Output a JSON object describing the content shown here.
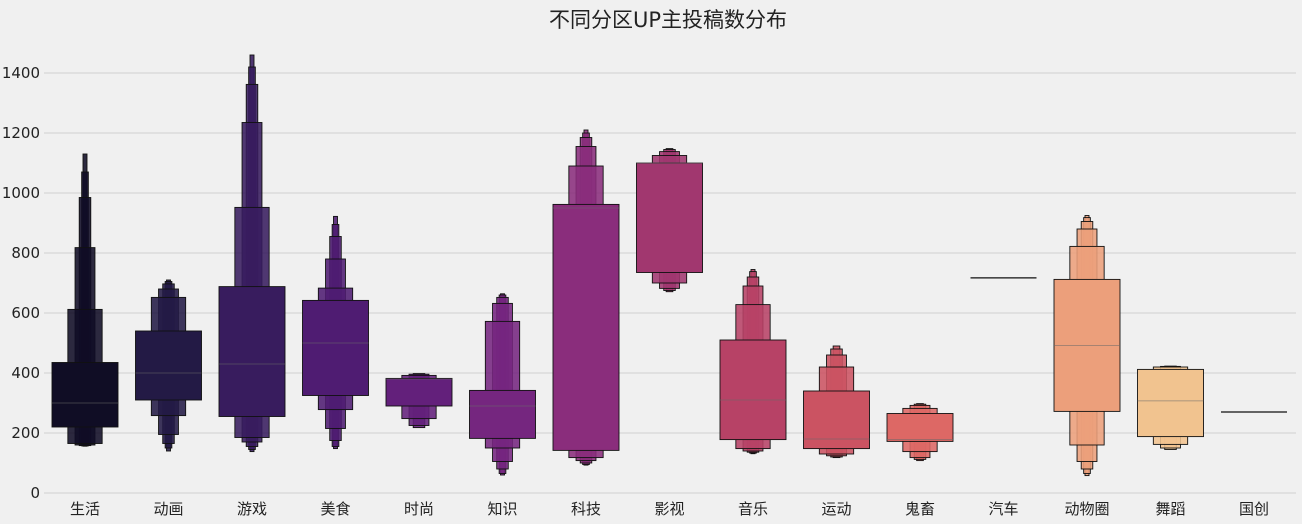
{
  "chart_data": {
    "type": "boxen",
    "title": "不同分区UP主投稿数分布",
    "xlabel": "",
    "ylabel": "",
    "ylim": [
      0,
      1530
    ],
    "yticks": [
      0,
      200,
      400,
      600,
      800,
      1000,
      1200,
      1400
    ],
    "grid": "horizontal",
    "legend": "none",
    "palette": "magma",
    "categories": [
      "生活",
      "动画",
      "游戏",
      "美食",
      "时尚",
      "知识",
      "科技",
      "影视",
      "音乐",
      "运动",
      "鬼畜",
      "汽车",
      "动物圈",
      "舞蹈",
      "国创"
    ],
    "series": [
      {
        "category": "生活",
        "color": "#100d25",
        "median": 300,
        "boxes": [
          [
            220,
            435
          ],
          [
            165,
            612
          ],
          [
            160,
            818
          ],
          [
            158,
            985
          ],
          [
            157,
            1070
          ],
          [
            156,
            1130
          ]
        ]
      },
      {
        "category": "动画",
        "color": "#231a45",
        "median": 400,
        "boxes": [
          [
            310,
            540
          ],
          [
            258,
            652
          ],
          [
            195,
            680
          ],
          [
            165,
            697
          ],
          [
            150,
            705
          ],
          [
            140,
            710
          ]
        ]
      },
      {
        "category": "游戏",
        "color": "#381c5e",
        "median": 430,
        "boxes": [
          [
            255,
            688
          ],
          [
            185,
            952
          ],
          [
            170,
            1235
          ],
          [
            155,
            1362
          ],
          [
            145,
            1420
          ],
          [
            138,
            1460
          ]
        ]
      },
      {
        "category": "美食",
        "color": "#4f1c72",
        "median": 500,
        "boxes": [
          [
            325,
            642
          ],
          [
            278,
            683
          ],
          [
            215,
            780
          ],
          [
            175,
            855
          ],
          [
            155,
            895
          ],
          [
            148,
            922
          ]
        ]
      },
      {
        "category": "时尚",
        "color": "#63207b",
        "median": 380,
        "boxes": [
          [
            290,
            382
          ],
          [
            248,
            392
          ],
          [
            225,
            396
          ],
          [
            218,
            398
          ]
        ]
      },
      {
        "category": "知识",
        "color": "#75267f",
        "median": 290,
        "boxes": [
          [
            182,
            342
          ],
          [
            150,
            572
          ],
          [
            105,
            632
          ],
          [
            80,
            652
          ],
          [
            65,
            660
          ],
          [
            60,
            664
          ]
        ]
      },
      {
        "category": "科技",
        "color": "#8a2d7c",
        "median": 950,
        "boxes": [
          [
            142,
            962
          ],
          [
            118,
            1090
          ],
          [
            108,
            1155
          ],
          [
            100,
            1185
          ],
          [
            95,
            1200
          ],
          [
            93,
            1210
          ]
        ]
      },
      {
        "category": "影视",
        "color": "#a1376f",
        "median": 1100,
        "boxes": [
          [
            735,
            1100
          ],
          [
            700,
            1125
          ],
          [
            682,
            1138
          ],
          [
            675,
            1145
          ],
          [
            671,
            1148
          ]
        ]
      },
      {
        "category": "音乐",
        "color": "#b74266",
        "median": 310,
        "boxes": [
          [
            178,
            510
          ],
          [
            148,
            628
          ],
          [
            140,
            690
          ],
          [
            136,
            720
          ],
          [
            133,
            738
          ],
          [
            131,
            745
          ]
        ]
      },
      {
        "category": "运动",
        "color": "#cb5362",
        "median": 180,
        "boxes": [
          [
            148,
            340
          ],
          [
            130,
            420
          ],
          [
            124,
            460
          ],
          [
            120,
            480
          ],
          [
            118,
            490
          ]
        ]
      },
      {
        "category": "鬼畜",
        "color": "#dd6865",
        "median": 178,
        "boxes": [
          [
            172,
            265
          ],
          [
            138,
            282
          ],
          [
            118,
            292
          ],
          [
            112,
            296
          ],
          [
            108,
            298
          ]
        ]
      },
      {
        "category": "汽车",
        "color": "#e88270",
        "median": 717,
        "boxes": []
      },
      {
        "category": "动物圈",
        "color": "#ec9f7b",
        "median": 492,
        "boxes": [
          [
            272,
            712
          ],
          [
            160,
            822
          ],
          [
            105,
            880
          ],
          [
            80,
            905
          ],
          [
            65,
            918
          ],
          [
            58,
            925
          ]
        ]
      },
      {
        "category": "舞蹈",
        "color": "#f1c38f",
        "median": 307,
        "boxes": [
          [
            188,
            412
          ],
          [
            162,
            420
          ],
          [
            150,
            422
          ],
          [
            145,
            423
          ]
        ]
      },
      {
        "category": "国创",
        "color": "#f7e0a8",
        "median": 270,
        "boxes": []
      }
    ]
  }
}
